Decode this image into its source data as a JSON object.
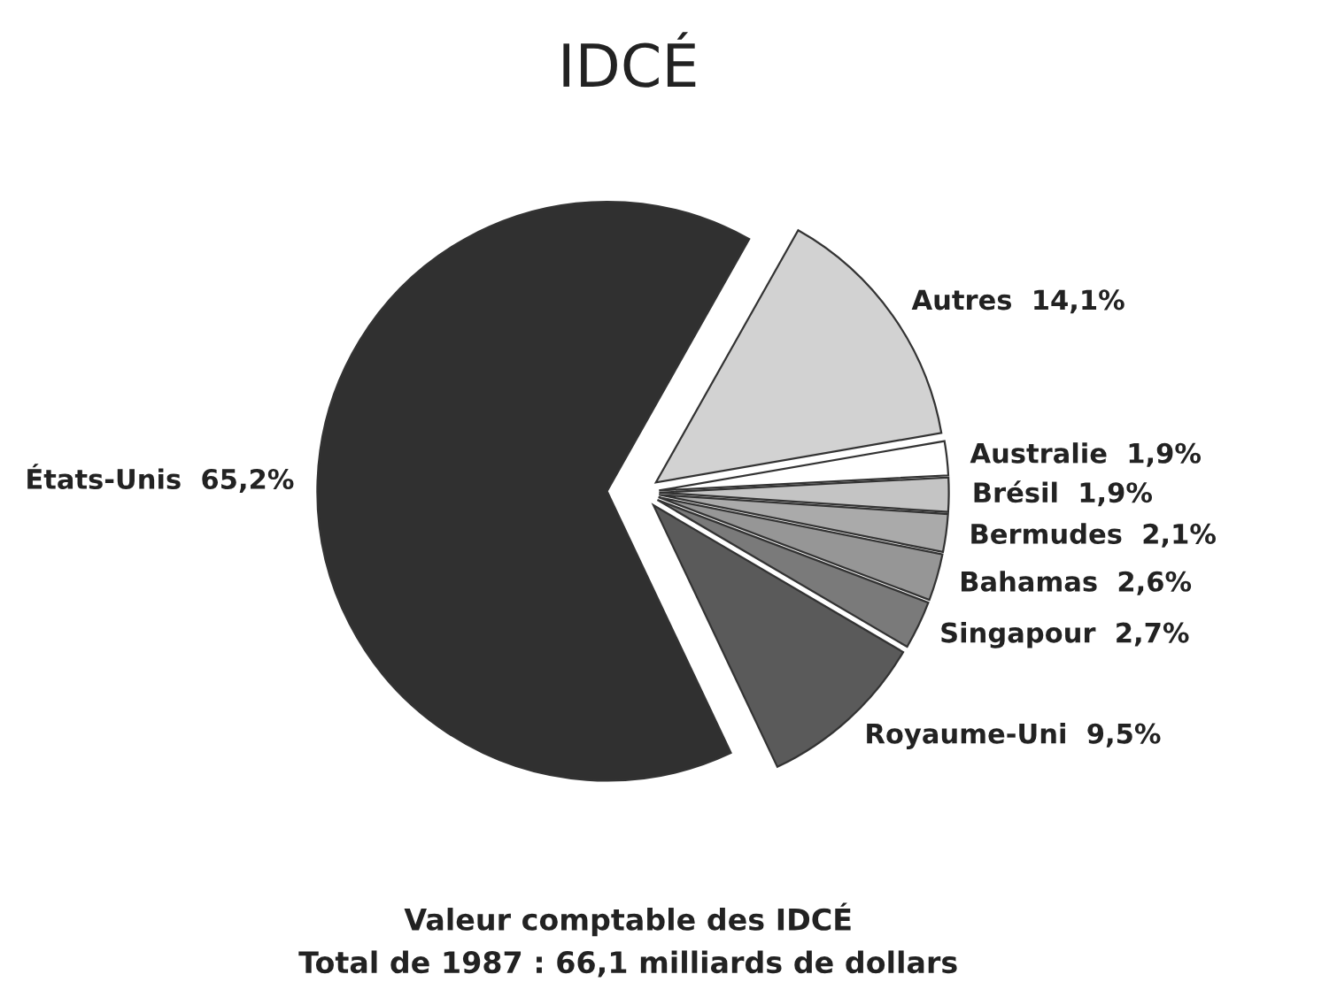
{
  "chart_data": {
    "type": "pie",
    "title": "IDCÉ",
    "categories": [
      "États-Unis",
      "Royaume-Uni",
      "Singapour",
      "Bahamas",
      "Bermudes",
      "Brésil",
      "Australie",
      "Autres"
    ],
    "values": [
      65.2,
      9.5,
      2.7,
      2.6,
      2.1,
      1.9,
      1.9,
      14.1
    ],
    "value_labels": [
      "65,2%",
      "9,5%",
      "2,7%",
      "2,6%",
      "2,1%",
      "1,9%",
      "1,9%",
      "14,1%"
    ],
    "colors": [
      "#303030",
      "#5a5a5a",
      "#7a7a7a",
      "#969696",
      "#aaaaaa",
      "#c4c4c4",
      "#ffffff",
      "#d2d2d2"
    ],
    "annotations": [
      "Valeur comptable des IDCÉ",
      "Total de 1987 : 66,1 milliards de dollars"
    ]
  }
}
